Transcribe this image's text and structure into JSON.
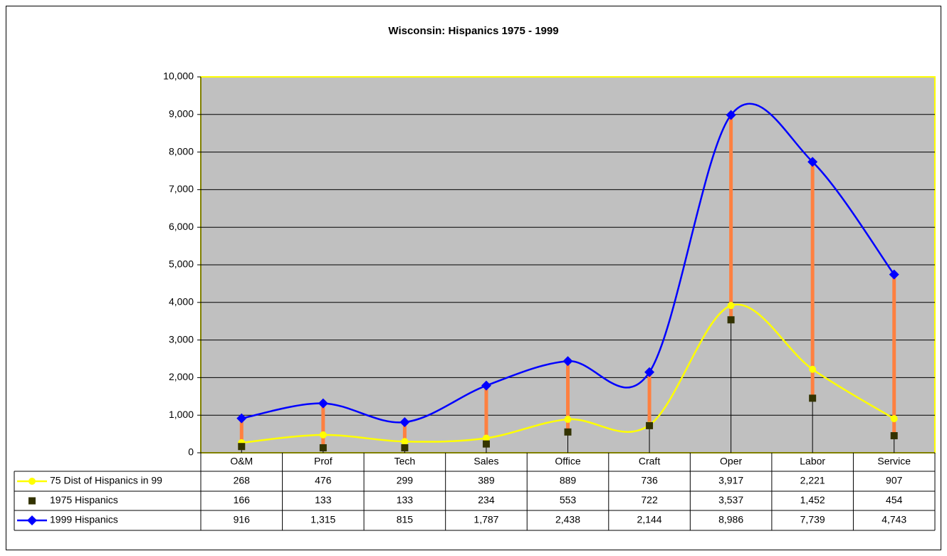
{
  "chart_data": {
    "type": "line",
    "title": "Wisconsin: Hispanics 1975 - 1999",
    "categories": [
      "O&M",
      "Prof",
      "Tech",
      "Sales",
      "Office",
      "Craft",
      "Oper",
      "Labor",
      "Service"
    ],
    "series": [
      {
        "name": "75 Dist of Hispanics in 99",
        "color": "#ffff00",
        "marker": "circle",
        "values": [
          268,
          476,
          299,
          389,
          889,
          736,
          3917,
          2221,
          907
        ],
        "value_labels": [
          "268",
          "476",
          "299",
          "389",
          "889",
          "736",
          "3,917",
          "2,221",
          "907"
        ]
      },
      {
        "name": "1975 Hispanics",
        "color": "#333300",
        "marker": "square",
        "line": false,
        "values": [
          166,
          133,
          133,
          234,
          553,
          722,
          3537,
          1452,
          454
        ],
        "value_labels": [
          "166",
          "133",
          "133",
          "234",
          "553",
          "722",
          "3,537",
          "1,452",
          "454"
        ]
      },
      {
        "name": "1999 Hispanics",
        "color": "#0000ff",
        "marker": "diamond",
        "values": [
          916,
          1315,
          815,
          1787,
          2438,
          2144,
          8986,
          7739,
          4743
        ],
        "value_labels": [
          "916",
          "1,315",
          "815",
          "1,787",
          "2,438",
          "2,144",
          "8,986",
          "7,739",
          "4,743"
        ]
      }
    ],
    "ylim": [
      0,
      10000
    ],
    "yticks": [
      0,
      {
        "value": 1000,
        "label": "1,000"
      },
      {
        "value": 2000,
        "label": "2,000"
      },
      {
        "value": 3000,
        "label": "3,000"
      },
      {
        "value": 4000,
        "label": "4,000"
      },
      {
        "value": 5000,
        "label": "5,000"
      },
      {
        "value": 6000,
        "label": "6,000"
      },
      {
        "value": 7000,
        "label": "7,000"
      },
      {
        "value": 8000,
        "label": "8,000"
      },
      {
        "value": 9000,
        "label": "9,000"
      },
      {
        "value": 10000,
        "label": "10,000"
      }
    ],
    "grid": true,
    "smooth": true,
    "plot_background": "#c0c0c0",
    "hilo_color": "#ff8040"
  }
}
